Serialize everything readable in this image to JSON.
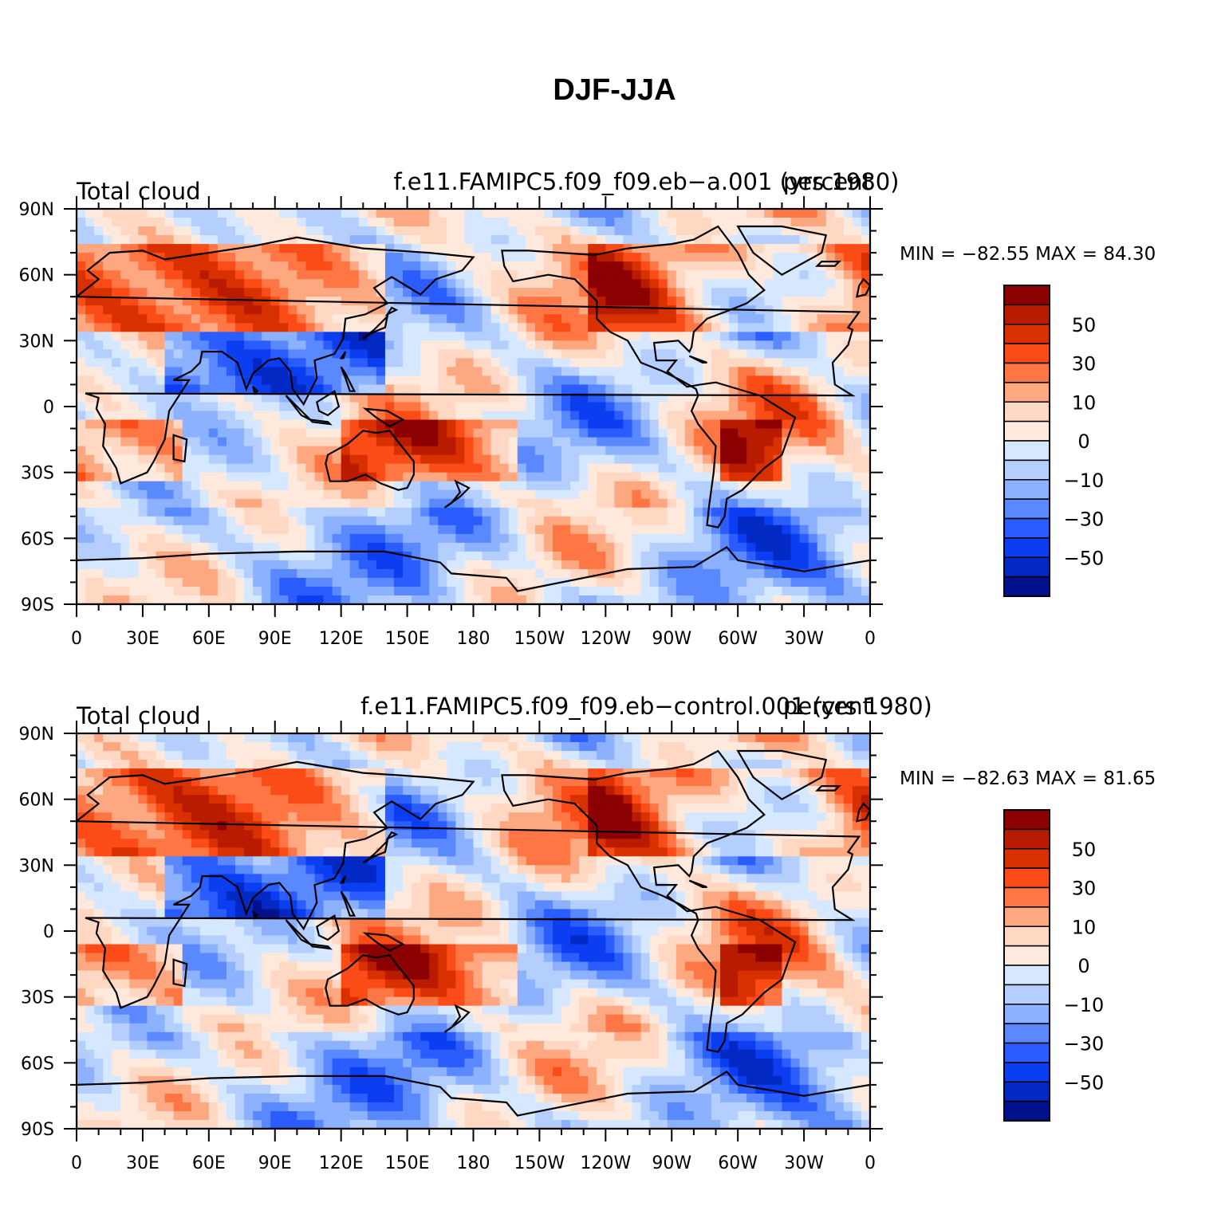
{
  "title": "DJF-JJA",
  "colorbar": {
    "levels": [
      "50",
      "30",
      "10",
      "0",
      "−10",
      "−30",
      "−50"
    ],
    "colors": [
      "#8b0000",
      "#b81b00",
      "#d93000",
      "#fb4c17",
      "#fe7644",
      "#fda881",
      "#fed8c2",
      "#fee9dc",
      "#d6e8ff",
      "#b4cefe",
      "#8cb1fe",
      "#5a88ff",
      "#2a5cfe",
      "#0a3ef0",
      "#0229c3",
      "#01118e"
    ]
  },
  "axes": {
    "lat_labels": [
      "90N",
      "60N",
      "30N",
      "0",
      "30S",
      "60S",
      "90S"
    ],
    "lon_labels": [
      "0",
      "30E",
      "60E",
      "90E",
      "120E",
      "150E",
      "180",
      "150W",
      "120W",
      "90W",
      "60W",
      "30W",
      "0"
    ]
  },
  "panels": [
    {
      "left_title": "Total cloud",
      "center_title": "f.e11.FAMIPC5.f09_f09.eb−a.001 (yrs 1980)",
      "right_title": "percent",
      "min_max": "MIN = −82.55  MAX =   84.30"
    },
    {
      "left_title": "Total cloud",
      "center_title": "f.e11.FAMIPC5.f09_f09.eb−control.001 (yrs 1980)",
      "right_title": "percent",
      "min_max": "MIN = −82.63  MAX =   81.65"
    }
  ]
}
